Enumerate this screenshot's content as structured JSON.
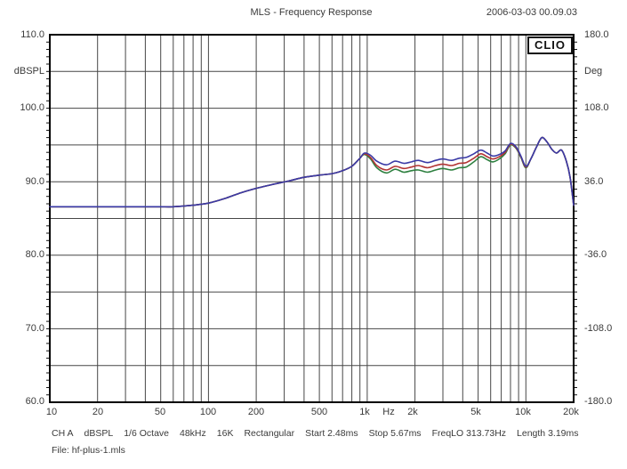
{
  "header": {
    "title": "MLS - Frequency Response",
    "date": "2006-03-03 00.09.03"
  },
  "logo": "CLIO",
  "axes": {
    "left": {
      "unit": "dBSPL",
      "ticks": [
        "110.0",
        "100.0",
        "90.0",
        "80.0",
        "70.0",
        "60.0"
      ]
    },
    "right": {
      "unit": "Deg",
      "ticks": [
        "180.0",
        "108.0",
        "36.0",
        "-36.0",
        "-108.0",
        "-180.0"
      ]
    },
    "bottom": {
      "unit": "Hz",
      "ticks": [
        "10",
        "20",
        "50",
        "100",
        "200",
        "500",
        "1k",
        "2k",
        "5k",
        "10k",
        "20k"
      ]
    }
  },
  "status": {
    "items": [
      "CH A",
      "dBSPL",
      "1/6 Octave",
      "48kHz",
      "16K",
      "Rectangular",
      "Start 2.48ms",
      "Stop 5.67ms",
      "FreqLO 313.73Hz",
      "Length 3.19ms"
    ]
  },
  "file_line": "File: hf-plus-1.mls",
  "chart_data": {
    "type": "line",
    "title": "MLS - Frequency Response",
    "x_scale": "log",
    "xlabel": "Hz",
    "ylabel_left": "dBSPL",
    "ylabel_right": "Deg",
    "xlim": [
      10,
      20000
    ],
    "ylim_left": [
      60,
      110
    ],
    "ylim_right": [
      -180,
      180
    ],
    "grid": {
      "h_lines_db": [
        65,
        70,
        75,
        80,
        85,
        90,
        95,
        100,
        105
      ],
      "v_lines_hz": [
        20,
        30,
        40,
        50,
        60,
        70,
        80,
        90,
        100,
        200,
        300,
        400,
        500,
        600,
        700,
        800,
        900,
        1000,
        2000,
        3000,
        4000,
        5000,
        6000,
        7000,
        8000,
        9000,
        10000
      ],
      "color": "#474747",
      "border_color": "#000000"
    },
    "x": [
      10,
      20,
      30,
      40,
      50,
      60,
      80,
      100,
      130,
      160,
      200,
      250,
      320,
      400,
      500,
      600,
      700,
      800,
      900,
      960,
      1050,
      1150,
      1320,
      1500,
      1700,
      1900,
      2100,
      2400,
      2700,
      3000,
      3400,
      3800,
      4200,
      4700,
      5200,
      5700,
      6200,
      6800,
      7400,
      8000,
      8700,
      9300,
      10000,
      10800,
      11700,
      12600,
      13600,
      14600,
      15600,
      16800,
      18000,
      19000,
      20000
    ],
    "series": [
      {
        "name": "green",
        "color": "#2e8040",
        "values": [
          86.6,
          86.6,
          86.6,
          86.6,
          86.6,
          86.6,
          86.8,
          87.1,
          87.8,
          88.5,
          89.1,
          89.6,
          90.1,
          90.6,
          90.9,
          91.1,
          91.5,
          92.1,
          93.2,
          93.7,
          93.1,
          91.9,
          91.2,
          91.7,
          91.3,
          91.5,
          91.6,
          91.3,
          91.6,
          91.8,
          91.6,
          91.9,
          92.0,
          92.7,
          93.4,
          93.0,
          92.7,
          93.1,
          93.8,
          95.0,
          94.5,
          93.3,
          91.9,
          93.2,
          94.8,
          96.0,
          95.4,
          94.4,
          93.9,
          94.3,
          92.8,
          90.6,
          86.8
        ]
      },
      {
        "name": "red",
        "color": "#b23434",
        "values": [
          86.6,
          86.6,
          86.6,
          86.6,
          86.6,
          86.6,
          86.8,
          87.1,
          87.8,
          88.5,
          89.1,
          89.6,
          90.1,
          90.6,
          90.9,
          91.1,
          91.5,
          92.1,
          93.2,
          93.8,
          93.3,
          92.2,
          91.6,
          92.1,
          91.8,
          92.0,
          92.2,
          91.9,
          92.2,
          92.4,
          92.2,
          92.5,
          92.6,
          93.2,
          93.8,
          93.4,
          93.1,
          93.4,
          94.0,
          95.1,
          94.6,
          93.4,
          92.0,
          93.2,
          94.8,
          96.0,
          95.4,
          94.4,
          93.9,
          94.3,
          92.8,
          90.6,
          86.8
        ]
      },
      {
        "name": "blue",
        "color": "#3a3aa6",
        "values": [
          86.6,
          86.6,
          86.6,
          86.6,
          86.6,
          86.6,
          86.8,
          87.1,
          87.8,
          88.5,
          89.1,
          89.6,
          90.1,
          90.6,
          90.9,
          91.1,
          91.5,
          92.1,
          93.2,
          93.9,
          93.6,
          92.8,
          92.3,
          92.8,
          92.5,
          92.7,
          92.9,
          92.6,
          92.9,
          93.1,
          92.9,
          93.2,
          93.3,
          93.8,
          94.3,
          93.9,
          93.5,
          93.7,
          94.2,
          95.2,
          94.7,
          93.5,
          92.1,
          93.2,
          94.8,
          96.0,
          95.4,
          94.4,
          93.9,
          94.3,
          92.8,
          90.6,
          86.8
        ]
      }
    ]
  }
}
